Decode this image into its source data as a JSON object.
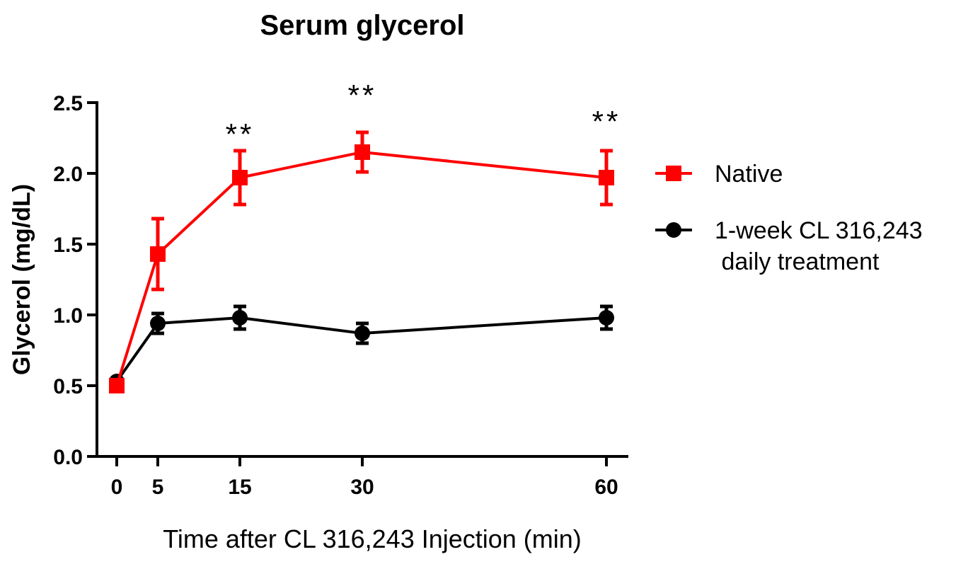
{
  "chart_data": {
    "type": "line",
    "title": "Serum glycerol",
    "xlabel": "Time after CL 316,243 Injection (min)",
    "ylabel": "Glycerol (mg/dL)",
    "x": [
      0,
      5,
      15,
      30,
      60
    ],
    "x_tick_labels": [
      "0",
      "5",
      "15",
      "30",
      "60"
    ],
    "ylim": [
      0,
      2.5
    ],
    "y_ticks": [
      0.0,
      0.5,
      1.0,
      1.5,
      2.0,
      2.5
    ],
    "y_tick_labels": [
      "0.0",
      "0.5",
      "1.0",
      "1.5",
      "2.0",
      "2.5"
    ],
    "grid": false,
    "legend_position": "right",
    "series": [
      {
        "name": "Native",
        "legend_lines": [
          "Native"
        ],
        "color": "#ff0000",
        "marker": "square",
        "values": [
          0.5,
          1.43,
          1.97,
          2.15,
          1.97
        ],
        "errors": [
          0.02,
          0.25,
          0.19,
          0.14,
          0.19
        ]
      },
      {
        "name": "1-week CL 316,243 daily treatment",
        "legend_lines": [
          "1-week CL 316,243",
          " daily treatment"
        ],
        "color": "#000000",
        "marker": "circle",
        "values": [
          0.53,
          0.94,
          0.98,
          0.87,
          0.98
        ],
        "errors": [
          0.02,
          0.07,
          0.08,
          0.07,
          0.08
        ]
      }
    ],
    "annotations": [
      {
        "x": 15,
        "text": "**"
      },
      {
        "x": 30,
        "text": "**"
      },
      {
        "x": 60,
        "text": "**"
      }
    ]
  }
}
